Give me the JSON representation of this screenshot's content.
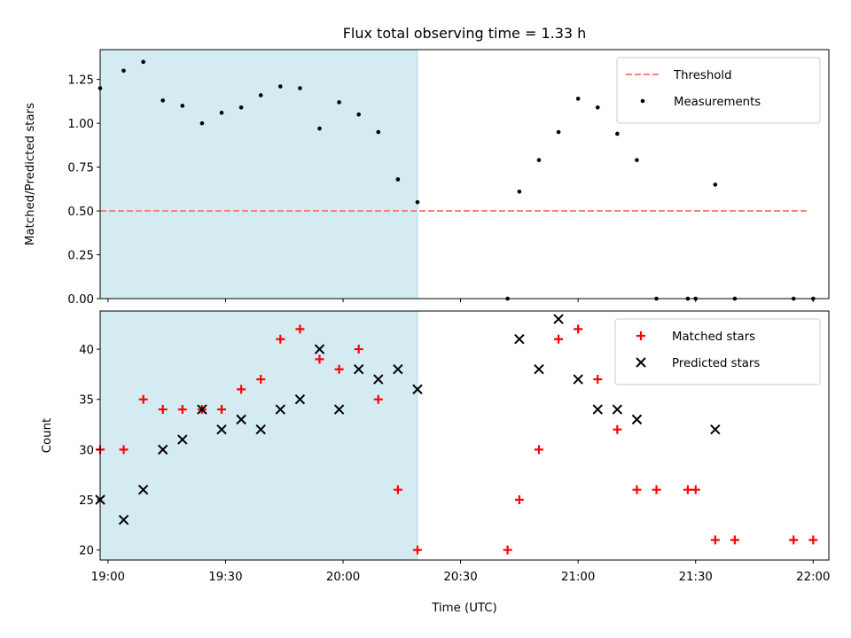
{
  "chart_data": {
    "type": "scatter",
    "title": "Flux total observing time = 1.33 h",
    "xlabel": "Time (UTC)",
    "x_ticks": [
      "19:00",
      "19:30",
      "20:00",
      "20:30",
      "21:00",
      "21:30",
      "22:00"
    ],
    "xlim": [
      "18:58",
      "22:04"
    ],
    "shaded_interval": [
      "18:58",
      "20:19"
    ],
    "shade_color": "#d4ebf1",
    "panels": [
      {
        "ylabel": "Matched/Predicted stars",
        "ylim": [
          0,
          1.42
        ],
        "y_ticks": [
          "0.00",
          "0.25",
          "0.50",
          "0.75",
          "1.00",
          "1.25"
        ],
        "legend_position": "upper right",
        "threshold": {
          "name": "Threshold",
          "value": 0.5,
          "x_start": "18:58",
          "x_end": "21:59",
          "color": "#ff7f7f"
        },
        "series": [
          {
            "name": "Measurements",
            "marker": "dot",
            "color": "#000000",
            "points": [
              [
                "18:58",
                1.2
              ],
              [
                "19:04",
                1.3
              ],
              [
                "19:09",
                1.35
              ],
              [
                "19:14",
                1.13
              ],
              [
                "19:19",
                1.1
              ],
              [
                "19:24",
                1.0
              ],
              [
                "19:29",
                1.06
              ],
              [
                "19:34",
                1.09
              ],
              [
                "19:39",
                1.16
              ],
              [
                "19:44",
                1.21
              ],
              [
                "19:49",
                1.2
              ],
              [
                "19:54",
                0.97
              ],
              [
                "19:59",
                1.12
              ],
              [
                "20:04",
                1.05
              ],
              [
                "20:09",
                0.95
              ],
              [
                "20:14",
                0.68
              ],
              [
                "20:19",
                0.55
              ],
              [
                "20:42",
                0.0
              ],
              [
                "20:45",
                0.61
              ],
              [
                "20:50",
                0.79
              ],
              [
                "20:55",
                0.95
              ],
              [
                "21:00",
                1.14
              ],
              [
                "21:05",
                1.09
              ],
              [
                "21:10",
                0.94
              ],
              [
                "21:15",
                0.79
              ],
              [
                "21:20",
                0.0
              ],
              [
                "21:28",
                0.0
              ],
              [
                "21:30",
                0.0
              ],
              [
                "21:35",
                0.65
              ],
              [
                "21:40",
                0.0
              ],
              [
                "21:55",
                0.0
              ],
              [
                "22:00",
                0.0
              ]
            ]
          }
        ]
      },
      {
        "ylabel": "Count",
        "ylim": [
          19,
          43.8
        ],
        "y_ticks": [
          "20",
          "25",
          "30",
          "35",
          "40"
        ],
        "legend_position": "upper right",
        "series": [
          {
            "name": "Matched stars",
            "marker": "plus",
            "color": "#ff0000",
            "points": [
              [
                "18:58",
                30
              ],
              [
                "19:04",
                30
              ],
              [
                "19:09",
                35
              ],
              [
                "19:14",
                34
              ],
              [
                "19:19",
                34
              ],
              [
                "19:24",
                34
              ],
              [
                "19:29",
                34
              ],
              [
                "19:34",
                36
              ],
              [
                "19:39",
                37
              ],
              [
                "19:44",
                41
              ],
              [
                "19:49",
                42
              ],
              [
                "19:54",
                39
              ],
              [
                "19:59",
                38
              ],
              [
                "20:04",
                40
              ],
              [
                "20:09",
                35
              ],
              [
                "20:14",
                26
              ],
              [
                "20:19",
                20
              ],
              [
                "20:42",
                20
              ],
              [
                "20:45",
                25
              ],
              [
                "20:50",
                30
              ],
              [
                "20:55",
                41
              ],
              [
                "21:00",
                42
              ],
              [
                "21:05",
                37
              ],
              [
                "21:10",
                32
              ],
              [
                "21:15",
                26
              ],
              [
                "21:20",
                26
              ],
              [
                "21:28",
                26
              ],
              [
                "21:30",
                26
              ],
              [
                "21:35",
                21
              ],
              [
                "21:40",
                21
              ],
              [
                "21:55",
                21
              ],
              [
                "22:00",
                21
              ]
            ]
          },
          {
            "name": "Predicted stars",
            "marker": "x",
            "color": "#000000",
            "points": [
              [
                "18:58",
                25
              ],
              [
                "19:04",
                23
              ],
              [
                "19:09",
                26
              ],
              [
                "19:14",
                30
              ],
              [
                "19:19",
                31
              ],
              [
                "19:24",
                34
              ],
              [
                "19:29",
                32
              ],
              [
                "19:34",
                33
              ],
              [
                "19:39",
                32
              ],
              [
                "19:44",
                34
              ],
              [
                "19:49",
                35
              ],
              [
                "19:54",
                40
              ],
              [
                "19:59",
                34
              ],
              [
                "20:04",
                38
              ],
              [
                "20:09",
                37
              ],
              [
                "20:14",
                38
              ],
              [
                "20:19",
                36
              ],
              [
                "20:45",
                41
              ],
              [
                "20:50",
                38
              ],
              [
                "20:55",
                43
              ],
              [
                "21:00",
                37
              ],
              [
                "21:05",
                34
              ],
              [
                "21:10",
                34
              ],
              [
                "21:15",
                33
              ],
              [
                "21:35",
                32
              ]
            ]
          }
        ]
      }
    ]
  }
}
